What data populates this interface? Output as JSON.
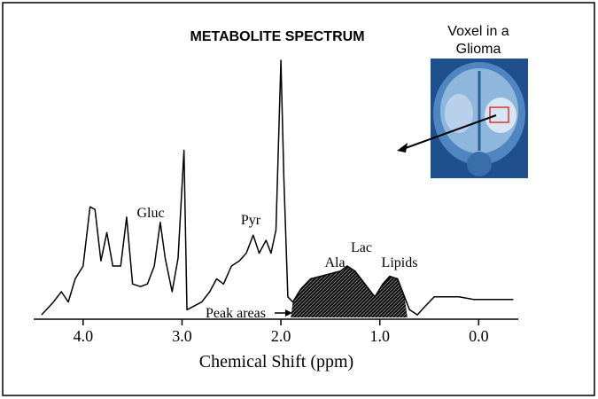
{
  "chart_data": {
    "type": "line",
    "title": "METABOLITE SPECTRUM",
    "x_label": "Chemical Shift (ppm)",
    "inset_label": [
      "Voxel in a",
      "Glioma"
    ],
    "annotations": [
      "Gluc",
      "Pyr",
      "Ala",
      "Lac",
      "Lipids",
      "Peak areas"
    ],
    "xlim": [
      4.5,
      -0.4
    ],
    "ylim": [
      0,
      100
    ],
    "xticks": [
      {
        "value": 4,
        "label": "4.0"
      },
      {
        "value": 3,
        "label": "3.0"
      },
      {
        "value": 2,
        "label": "2.0"
      },
      {
        "value": 1,
        "label": "1.0"
      },
      {
        "value": 0,
        "label": "0.0"
      }
    ],
    "shaded_xlim": [
      1.9,
      0.72
    ],
    "color": "#000000",
    "x": [
      4.42,
      4.3,
      4.22,
      4.15,
      4.08,
      4.0,
      3.93,
      3.88,
      3.82,
      3.76,
      3.7,
      3.62,
      3.56,
      3.5,
      3.42,
      3.35,
      3.28,
      3.22,
      3.17,
      3.1,
      3.04,
      2.98,
      2.95,
      2.9,
      2.8,
      2.72,
      2.65,
      2.58,
      2.5,
      2.42,
      2.35,
      2.28,
      2.22,
      2.15,
      2.1,
      2.05,
      2.0,
      1.97,
      1.93,
      1.88,
      1.8,
      1.7,
      1.6,
      1.5,
      1.4,
      1.33,
      1.25,
      1.15,
      1.05,
      0.97,
      0.9,
      0.82,
      0.75,
      0.7,
      0.62,
      0.55,
      0.45,
      0.35,
      0.2,
      0.05,
      -0.1,
      -0.25,
      -0.35
    ],
    "values": [
      1,
      6,
      10,
      6,
      15,
      20,
      43,
      42,
      22,
      33,
      20,
      20,
      39,
      13,
      12,
      13,
      20,
      37,
      23,
      10,
      23,
      65,
      3,
      4,
      6,
      10,
      15,
      13,
      20,
      22,
      25,
      32,
      25,
      30,
      25,
      34,
      100,
      54,
      8,
      6,
      11,
      15,
      16,
      17,
      18,
      20,
      18,
      13,
      8,
      13,
      16,
      15,
      8,
      3,
      1,
      4,
      8,
      8,
      8,
      7,
      7,
      7,
      7
    ]
  }
}
